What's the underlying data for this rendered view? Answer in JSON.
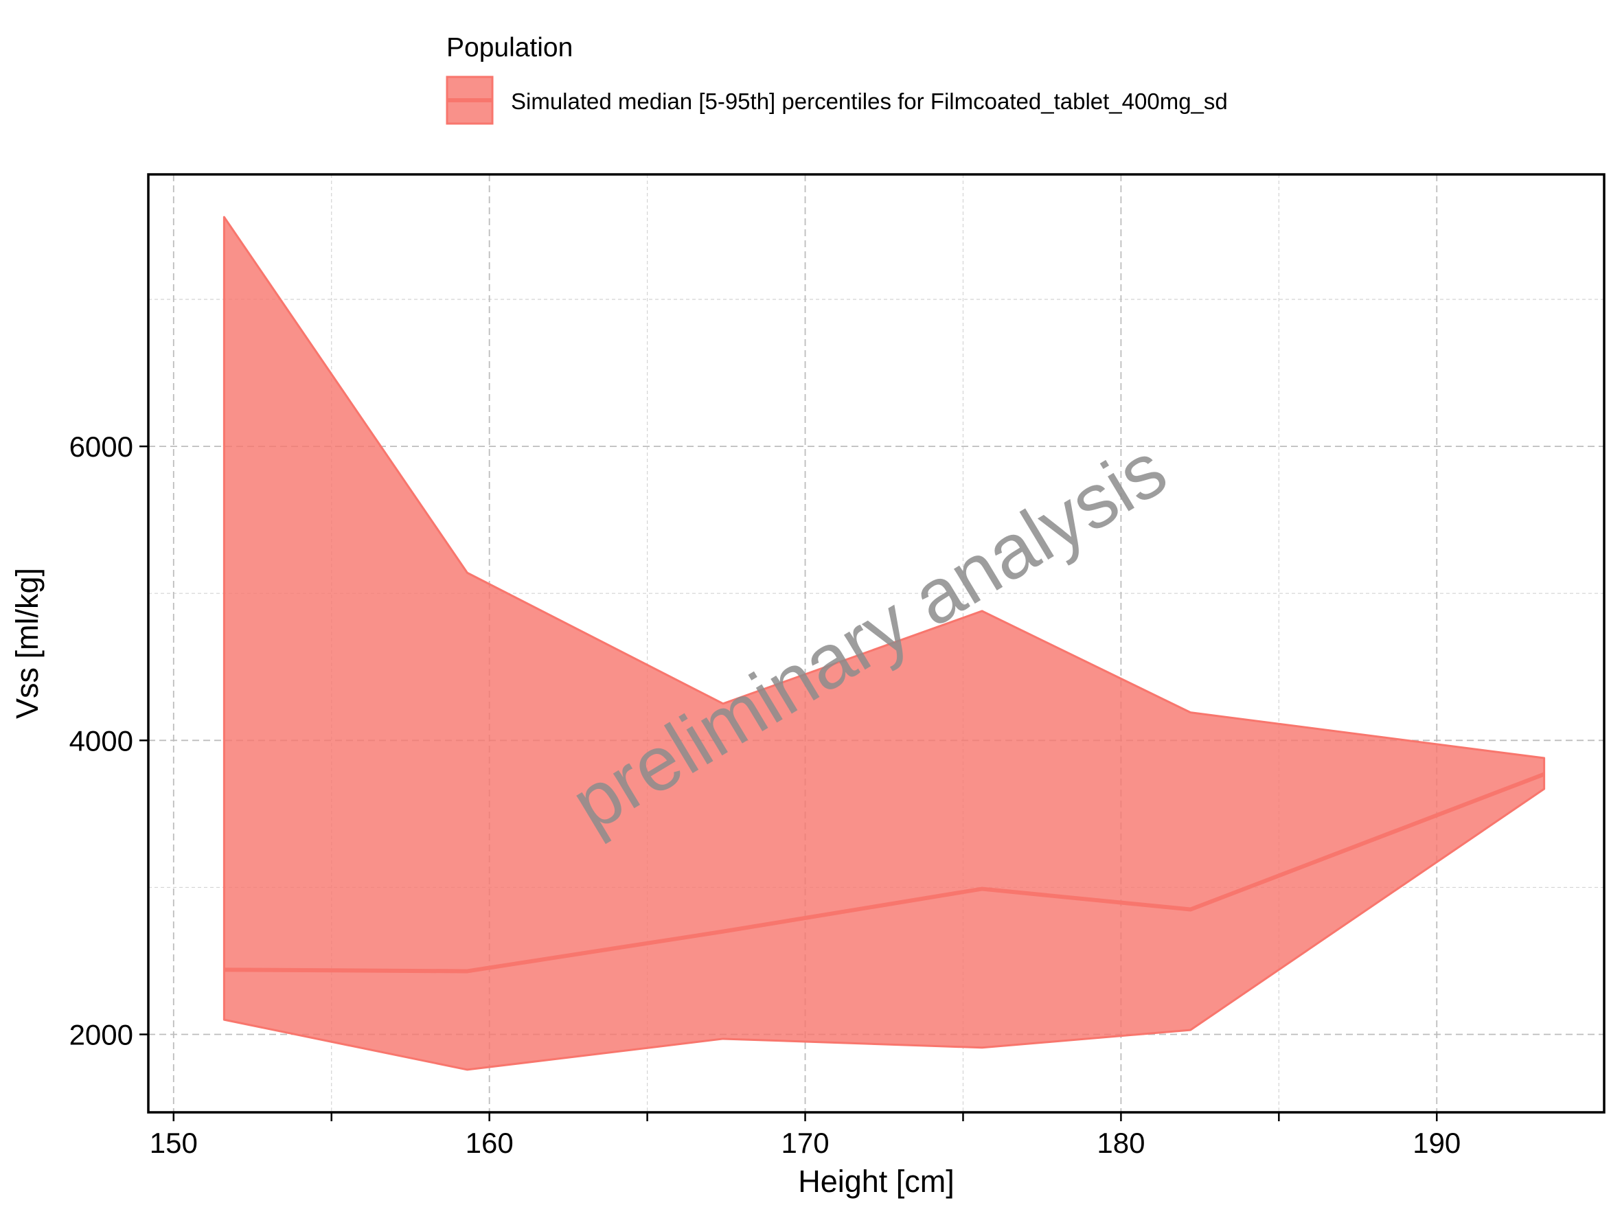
{
  "chart_data": {
    "type": "area",
    "title": "",
    "xlabel": "Height [cm]",
    "ylabel": "Vss [ml/kg]",
    "xlim": [
      149.2,
      195.3
    ],
    "ylim": [
      1470,
      7850
    ],
    "xticks": [
      150,
      160,
      170,
      180,
      190
    ],
    "xtick_labels": [
      "150",
      "160",
      "170",
      "180",
      "190"
    ],
    "yticks": [
      2000,
      4000,
      6000
    ],
    "ytick_labels": [
      "2000",
      "4000",
      "6000"
    ],
    "x_minor_gridlines": [
      155,
      165,
      175,
      185
    ],
    "y_minor_gridlines": [
      3000,
      5000,
      7000
    ],
    "grid": true,
    "legend": {
      "title": "Population",
      "placement": "top",
      "entries": [
        "Simulated median [5-95th] percentiles for Filmcoated_tablet_400mg_sd"
      ]
    },
    "series": [
      {
        "name": "Simulated median [5-95th] percentiles for Filmcoated_tablet_400mg_sd",
        "color": "#F8766D",
        "x": [
          151.6,
          159.3,
          167.4,
          175.6,
          182.2,
          193.4
        ],
        "median": [
          2440,
          2430,
          2700,
          2990,
          2850,
          3770
        ],
        "p5": [
          2100,
          1760,
          1970,
          1910,
          2030,
          3670
        ],
        "p95": [
          7560,
          5140,
          4250,
          4880,
          4190,
          3880
        ]
      }
    ],
    "watermark": "preliminary analysis"
  }
}
